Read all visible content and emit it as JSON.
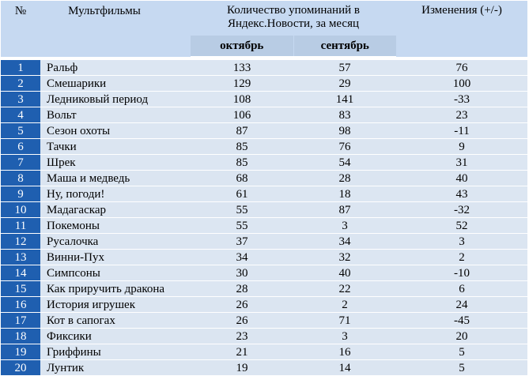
{
  "header": {
    "num_label": "№",
    "title_label": "Мультфильмы",
    "mentions_label": "Количество упоминаний в Яндекс.Новости, за месяц",
    "october_label": "октябрь",
    "september_label": "сентябрь",
    "change_label": "Изменения (+/-)"
  },
  "rows": [
    {
      "n": "1",
      "name": "Ральф",
      "oct": "133",
      "sep": "57",
      "chg": "76"
    },
    {
      "n": "2",
      "name": "Смешарики",
      "oct": "129",
      "sep": "29",
      "chg": "100"
    },
    {
      "n": "3",
      "name": "Ледниковый период",
      "oct": "108",
      "sep": "141",
      "chg": "-33"
    },
    {
      "n": "4",
      "name": "Вольт",
      "oct": "106",
      "sep": "83",
      "chg": "23"
    },
    {
      "n": "5",
      "name": "Сезон охоты",
      "oct": "87",
      "sep": "98",
      "chg": "-11"
    },
    {
      "n": "6",
      "name": "Тачки",
      "oct": "85",
      "sep": "76",
      "chg": "9"
    },
    {
      "n": "7",
      "name": "Шрек",
      "oct": "85",
      "sep": "54",
      "chg": "31"
    },
    {
      "n": "8",
      "name": "Маша и медведь",
      "oct": "68",
      "sep": "28",
      "chg": "40"
    },
    {
      "n": "9",
      "name": "Ну, погоди!",
      "oct": "61",
      "sep": "18",
      "chg": "43"
    },
    {
      "n": "10",
      "name": "Мадагаскар",
      "oct": "55",
      "sep": "87",
      "chg": "-32"
    },
    {
      "n": "11",
      "name": "Покемоны",
      "oct": "55",
      "sep": "3",
      "chg": "52"
    },
    {
      "n": "12",
      "name": "Русалочка",
      "oct": "37",
      "sep": "34",
      "chg": "3"
    },
    {
      "n": "13",
      "name": "Винни-Пух",
      "oct": "34",
      "sep": "32",
      "chg": "2"
    },
    {
      "n": "14",
      "name": "Симпсоны",
      "oct": "30",
      "sep": "40",
      "chg": "-10"
    },
    {
      "n": "15",
      "name": "Как приручить дракона",
      "oct": "28",
      "sep": "22",
      "chg": "6"
    },
    {
      "n": "16",
      "name": "История игрушек",
      "oct": "26",
      "sep": "2",
      "chg": "24"
    },
    {
      "n": "17",
      "name": "Кот в сапогах",
      "oct": "26",
      "sep": "71",
      "chg": "-45"
    },
    {
      "n": "18",
      "name": "Фиксики",
      "oct": "23",
      "sep": "3",
      "chg": "20"
    },
    {
      "n": "19",
      "name": "Гриффины",
      "oct": "21",
      "sep": "16",
      "chg": "5"
    },
    {
      "n": "20",
      "name": "Лунтик",
      "oct": "19",
      "sep": "14",
      "chg": "5"
    }
  ],
  "colors": {
    "header_band": "#c6d9f1",
    "month_band": "#b8cce4",
    "index_cell": "#1f5fb0",
    "row_cell": "#dce6f2"
  }
}
